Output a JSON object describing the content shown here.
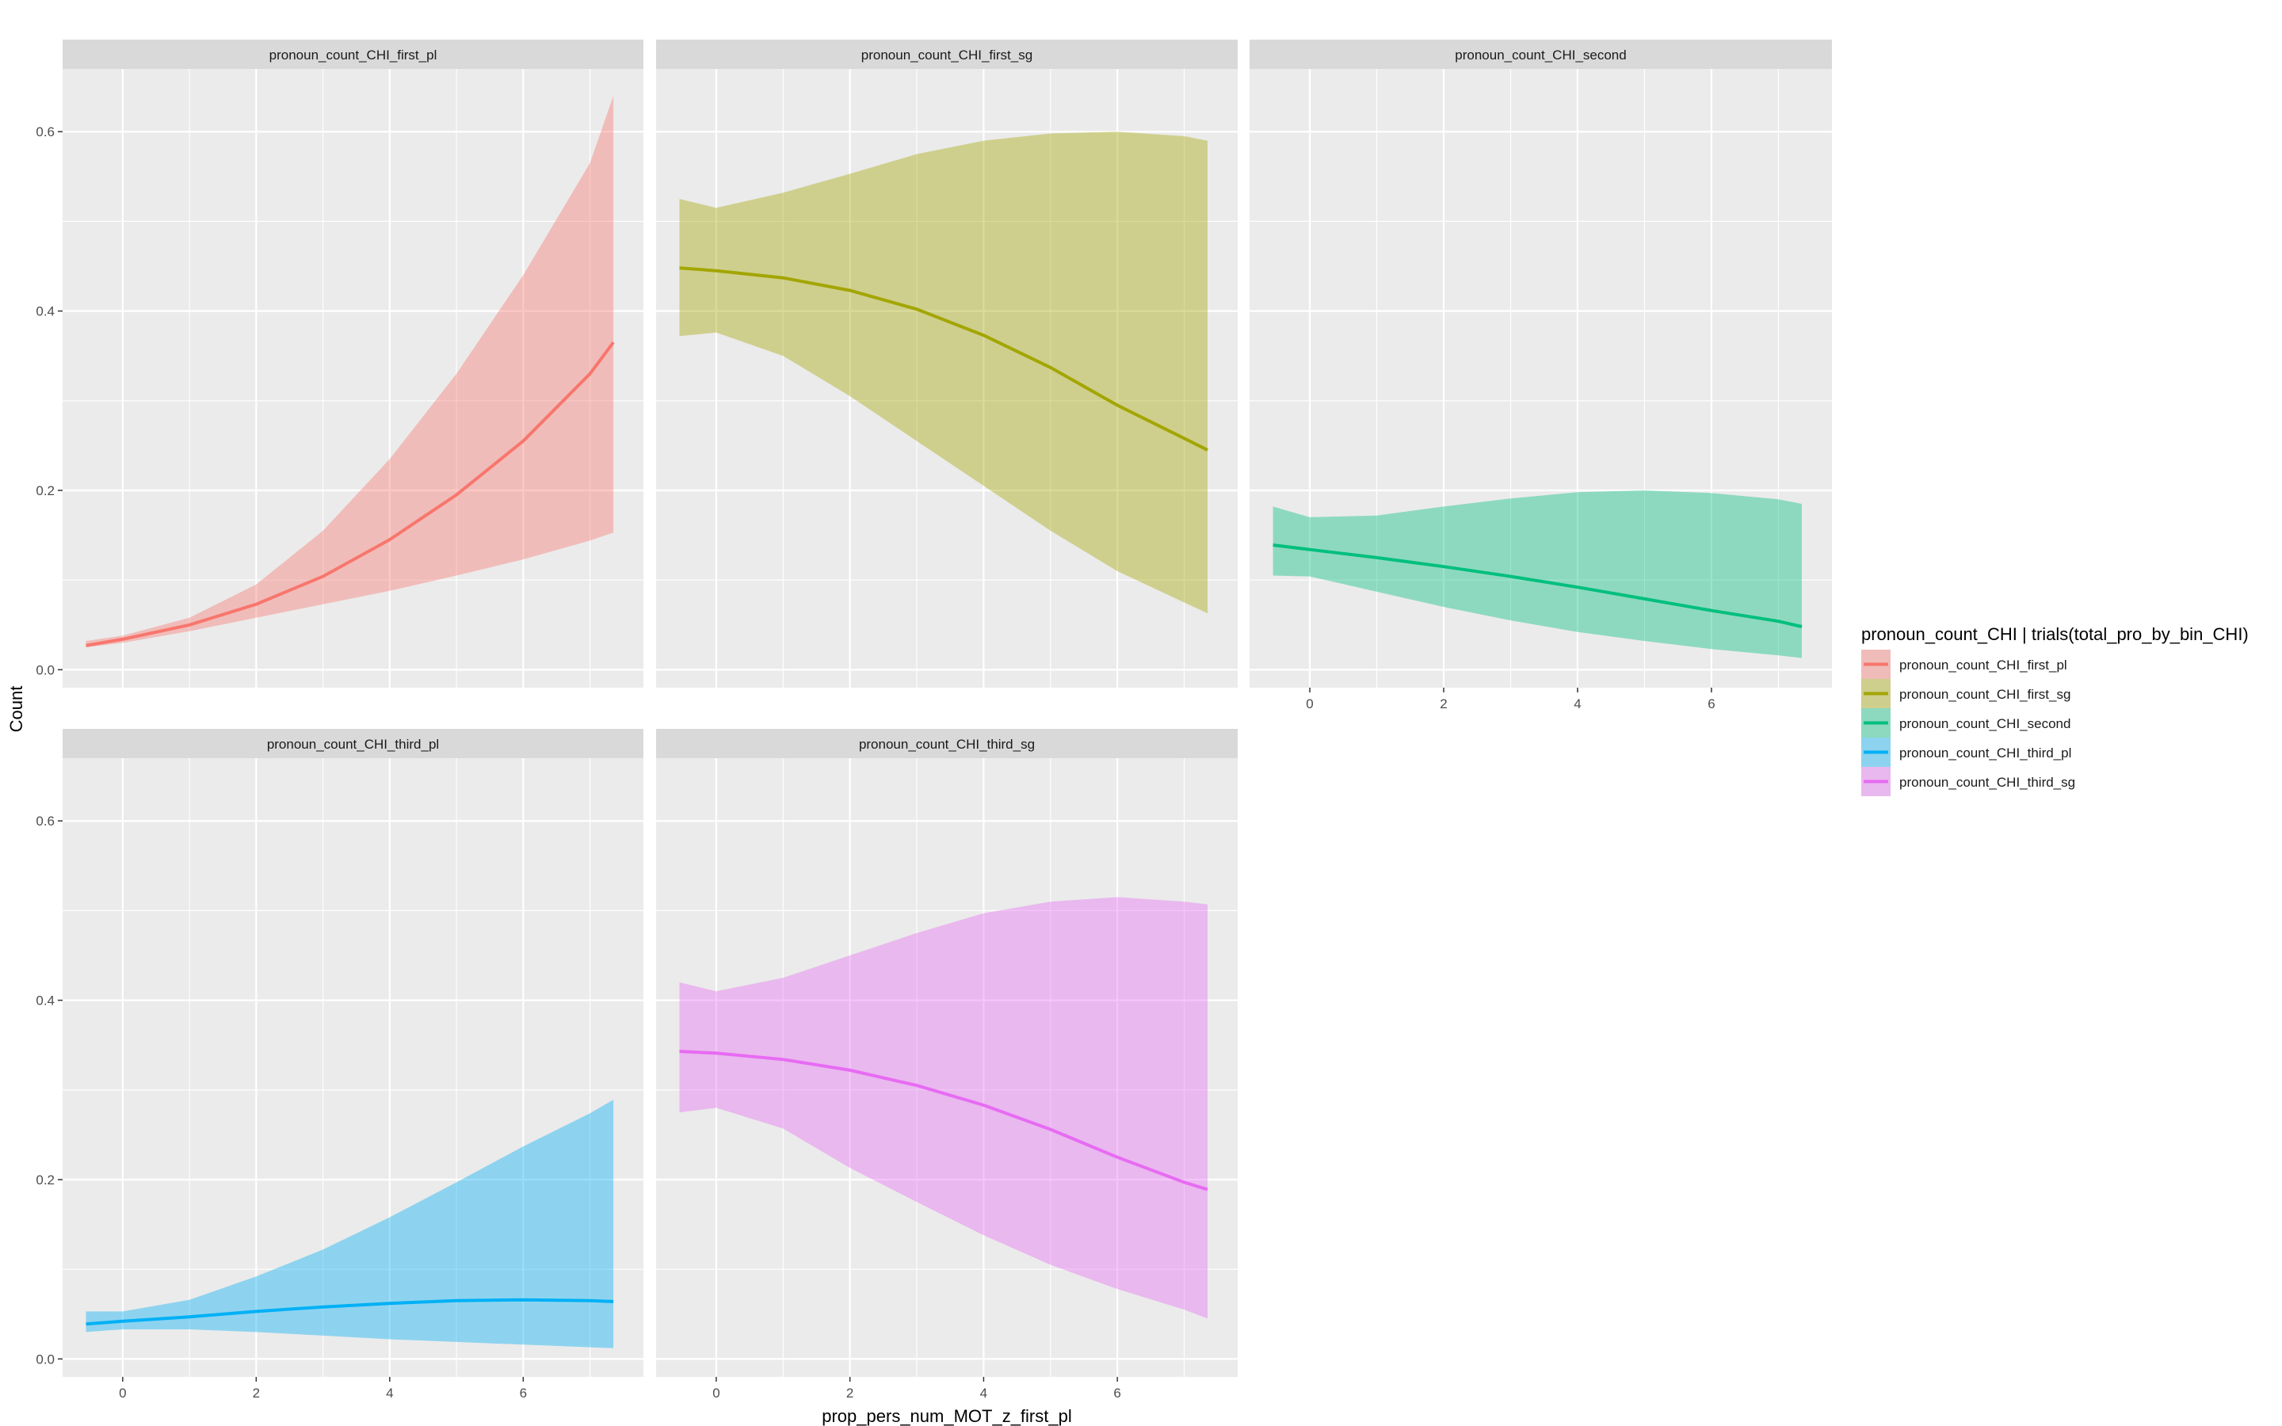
{
  "chart_data": {
    "type": "line",
    "subtype": "faceted line with confidence ribbons",
    "xlabel": "prop_pers_num_MOT_z_first_pl",
    "ylabel": "Count",
    "xlim": [
      -0.9,
      7.8
    ],
    "ylim": [
      -0.02,
      0.67
    ],
    "x_ticks": [
      0,
      2,
      4,
      6
    ],
    "y_ticks": [
      0.0,
      0.2,
      0.4,
      0.6
    ],
    "x_tick_labels": [
      "0",
      "2",
      "4",
      "6"
    ],
    "y_tick_labels": [
      "0.0",
      "0.2",
      "0.4",
      "0.6"
    ],
    "grid": true,
    "legend": {
      "title": "pronoun_count_CHI | trials(total_pro_by_bin_CHI)",
      "position": "right"
    },
    "series": [
      {
        "name": "pronoun_count_CHI_first_pl",
        "color": "#F8766D",
        "x": [
          -0.55,
          0.0,
          1.0,
          2.0,
          3.0,
          4.0,
          5.0,
          6.0,
          7.0,
          7.35
        ],
        "y": [
          0.027,
          0.034,
          0.05,
          0.073,
          0.104,
          0.145,
          0.195,
          0.255,
          0.33,
          0.365
        ],
        "lower": [
          0.025,
          0.03,
          0.043,
          0.058,
          0.073,
          0.088,
          0.105,
          0.123,
          0.144,
          0.153
        ],
        "upper": [
          0.032,
          0.038,
          0.058,
          0.095,
          0.155,
          0.235,
          0.33,
          0.44,
          0.565,
          0.64
        ]
      },
      {
        "name": "pronoun_count_CHI_first_sg",
        "color": "#A3A500",
        "x": [
          -0.55,
          0.0,
          1.0,
          2.0,
          3.0,
          4.0,
          5.0,
          6.0,
          7.0,
          7.35
        ],
        "y": [
          0.448,
          0.445,
          0.437,
          0.423,
          0.402,
          0.373,
          0.337,
          0.295,
          0.258,
          0.245
        ],
        "lower": [
          0.372,
          0.376,
          0.35,
          0.305,
          0.255,
          0.205,
          0.155,
          0.11,
          0.075,
          0.063
        ],
        "upper": [
          0.525,
          0.515,
          0.532,
          0.553,
          0.575,
          0.59,
          0.598,
          0.6,
          0.595,
          0.59
        ]
      },
      {
        "name": "pronoun_count_CHI_second",
        "color": "#00BF7D",
        "x": [
          -0.55,
          0.0,
          1.0,
          2.0,
          3.0,
          4.0,
          5.0,
          6.0,
          7.0,
          7.35
        ],
        "y": [
          0.139,
          0.134,
          0.125,
          0.115,
          0.104,
          0.092,
          0.079,
          0.066,
          0.054,
          0.048
        ],
        "lower": [
          0.105,
          0.104,
          0.087,
          0.07,
          0.055,
          0.042,
          0.032,
          0.023,
          0.016,
          0.013
        ],
        "upper": [
          0.182,
          0.17,
          0.172,
          0.182,
          0.191,
          0.198,
          0.2,
          0.197,
          0.19,
          0.185
        ]
      },
      {
        "name": "pronoun_count_CHI_third_pl",
        "color": "#00B0F6",
        "x": [
          -0.55,
          0.0,
          1.0,
          2.0,
          3.0,
          4.0,
          5.0,
          6.0,
          7.0,
          7.35
        ],
        "y": [
          0.039,
          0.042,
          0.047,
          0.053,
          0.058,
          0.062,
          0.065,
          0.066,
          0.065,
          0.064
        ],
        "lower": [
          0.03,
          0.033,
          0.033,
          0.03,
          0.026,
          0.022,
          0.019,
          0.016,
          0.013,
          0.012
        ],
        "upper": [
          0.053,
          0.053,
          0.066,
          0.092,
          0.122,
          0.158,
          0.197,
          0.237,
          0.274,
          0.289
        ]
      },
      {
        "name": "pronoun_count_CHI_third_sg",
        "color": "#E76BF3",
        "x": [
          -0.55,
          0.0,
          1.0,
          2.0,
          3.0,
          4.0,
          5.0,
          6.0,
          7.0,
          7.35
        ],
        "y": [
          0.343,
          0.341,
          0.334,
          0.322,
          0.305,
          0.283,
          0.256,
          0.225,
          0.197,
          0.189
        ],
        "lower": [
          0.275,
          0.28,
          0.257,
          0.213,
          0.175,
          0.138,
          0.105,
          0.078,
          0.055,
          0.045
        ],
        "upper": [
          0.42,
          0.41,
          0.425,
          0.45,
          0.475,
          0.497,
          0.51,
          0.515,
          0.51,
          0.507
        ]
      }
    ]
  }
}
